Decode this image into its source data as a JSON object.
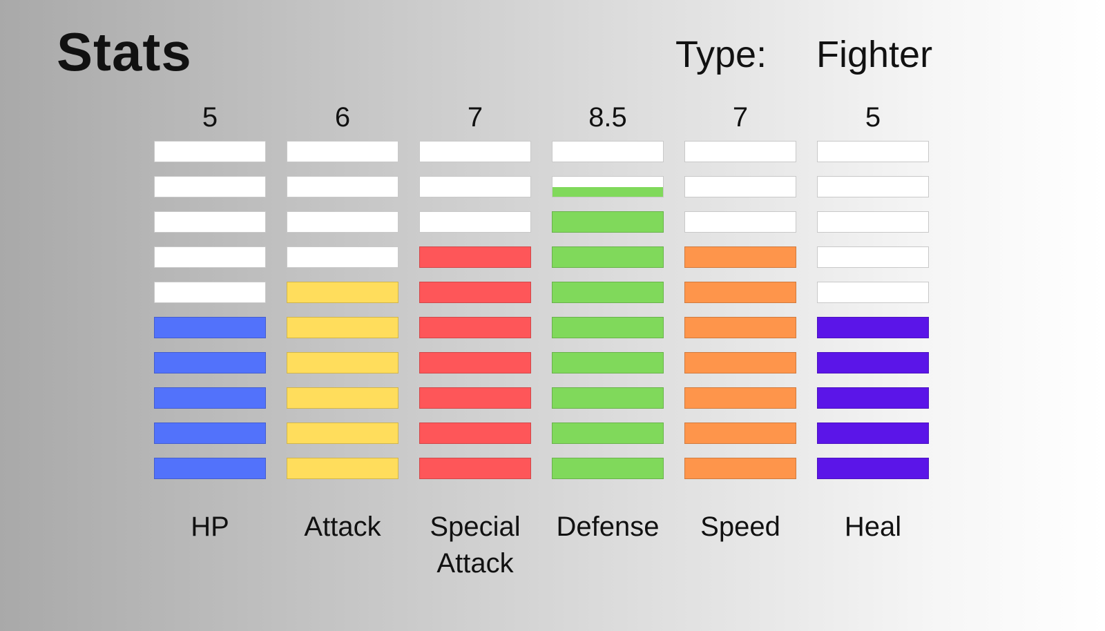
{
  "header": {
    "title": "Stats",
    "type_label": "Type:",
    "type_value": "Fighter"
  },
  "chart_data": {
    "type": "bar",
    "segments_per_bar": 10,
    "ylim": [
      0,
      10
    ],
    "empty_color": "#ffffff",
    "categories": [
      "HP",
      "Attack",
      "Special Attack",
      "Defense",
      "Speed",
      "Heal"
    ],
    "category_lines": [
      [
        "HP"
      ],
      [
        "Attack"
      ],
      [
        "Special",
        "Attack"
      ],
      [
        "Defense"
      ],
      [
        "Speed"
      ],
      [
        "Heal"
      ]
    ],
    "value_labels": [
      "5",
      "6",
      "7",
      "8.5",
      "7",
      "5"
    ],
    "values": [
      5,
      6,
      7,
      8.5,
      7,
      5
    ],
    "colors": [
      "#5272fb",
      "#ffdd5c",
      "#fe5659",
      "#80d95b",
      "#fe954b",
      "#5b15e8"
    ]
  }
}
